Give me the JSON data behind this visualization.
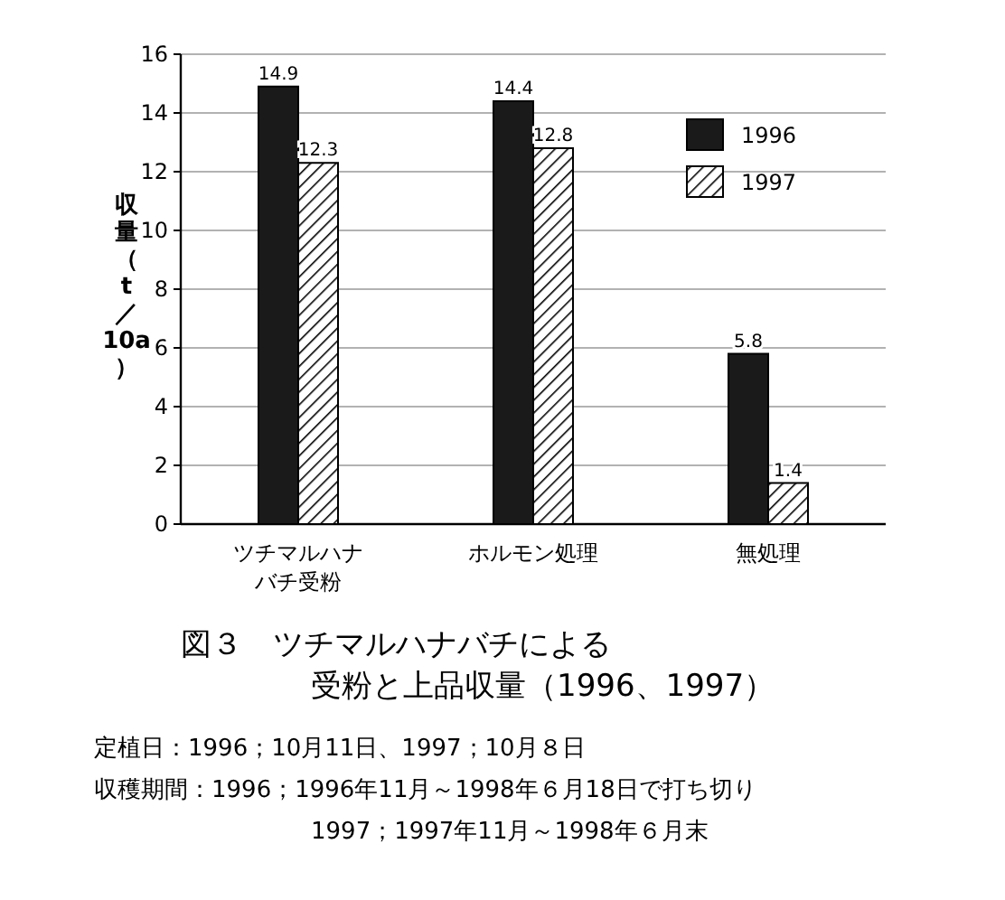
{
  "chart_data": {
    "type": "bar",
    "title": "図３　ツチマルハナバチによる受粉と上品収量（1996、1997）",
    "ylabel": "収量（t／10a）",
    "categories": [
      "ツチマルハナバチ受粉",
      "ホルモン処理",
      "無処理"
    ],
    "series": [
      {
        "name": "1996",
        "color": "#1a1a1a",
        "values": [
          14.9,
          14.4,
          5.8
        ]
      },
      {
        "name": "1997",
        "color": "#000000",
        "values": [
          12.3,
          12.8,
          1.4
        ]
      }
    ],
    "ylim": [
      0,
      16
    ],
    "yticks": [
      0,
      2,
      4,
      6,
      8,
      10,
      12,
      14,
      16
    ],
    "grid": "y",
    "legend": "top right",
    "data_labels": true,
    "annotations": [
      "定植日：1996；10月11日、1997；10月８日",
      "収穫期間：1996；1996年11月～1998年６月18日で打ち切り",
      "1997；1997年11月～1998年６月末"
    ]
  }
}
